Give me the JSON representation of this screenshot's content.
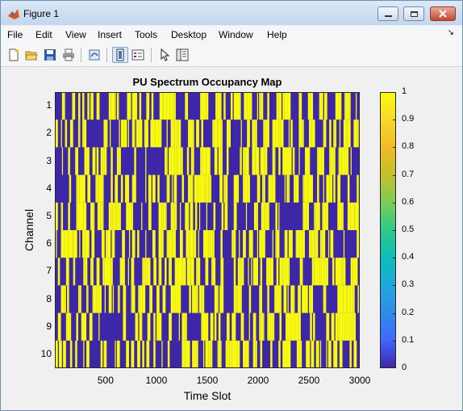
{
  "window": {
    "title": "Figure 1",
    "controls": [
      "minimize",
      "maximize",
      "close"
    ]
  },
  "menu": [
    "File",
    "Edit",
    "View",
    "Insert",
    "Tools",
    "Desktop",
    "Window",
    "Help"
  ],
  "toolbar_icons": [
    "new-figure-icon",
    "open-file-icon",
    "save-icon",
    "print-icon",
    "link-plot-icon",
    "dock-figure-icon",
    "insert-legend-icon",
    "pointer-icon",
    "property-editor-icon"
  ],
  "chart_data": {
    "type": "heatmap",
    "title": "PU Spectrum Occupancy Map",
    "xlabel": "Time Slot",
    "ylabel": "Channel",
    "x_range": [
      1,
      3000
    ],
    "x_ticks": [
      "500",
      "1000",
      "1500",
      "2000",
      "2500",
      "3000"
    ],
    "y_ticks": [
      "1",
      "2",
      "3",
      "4",
      "5",
      "6",
      "7",
      "8",
      "9",
      "10"
    ],
    "rows": 10,
    "values_description": "binary 0/1 occupancy per channel and time slot",
    "colormap": "parula",
    "color_low": "#3e26a8",
    "color_high": "#f9fb0e",
    "clim": [
      0,
      1
    ],
    "colorbar_ticks": [
      "0",
      "0.1",
      "0.2",
      "0.3",
      "0.4",
      "0.5",
      "0.6",
      "0.7",
      "0.8",
      "0.9",
      "1"
    ]
  }
}
